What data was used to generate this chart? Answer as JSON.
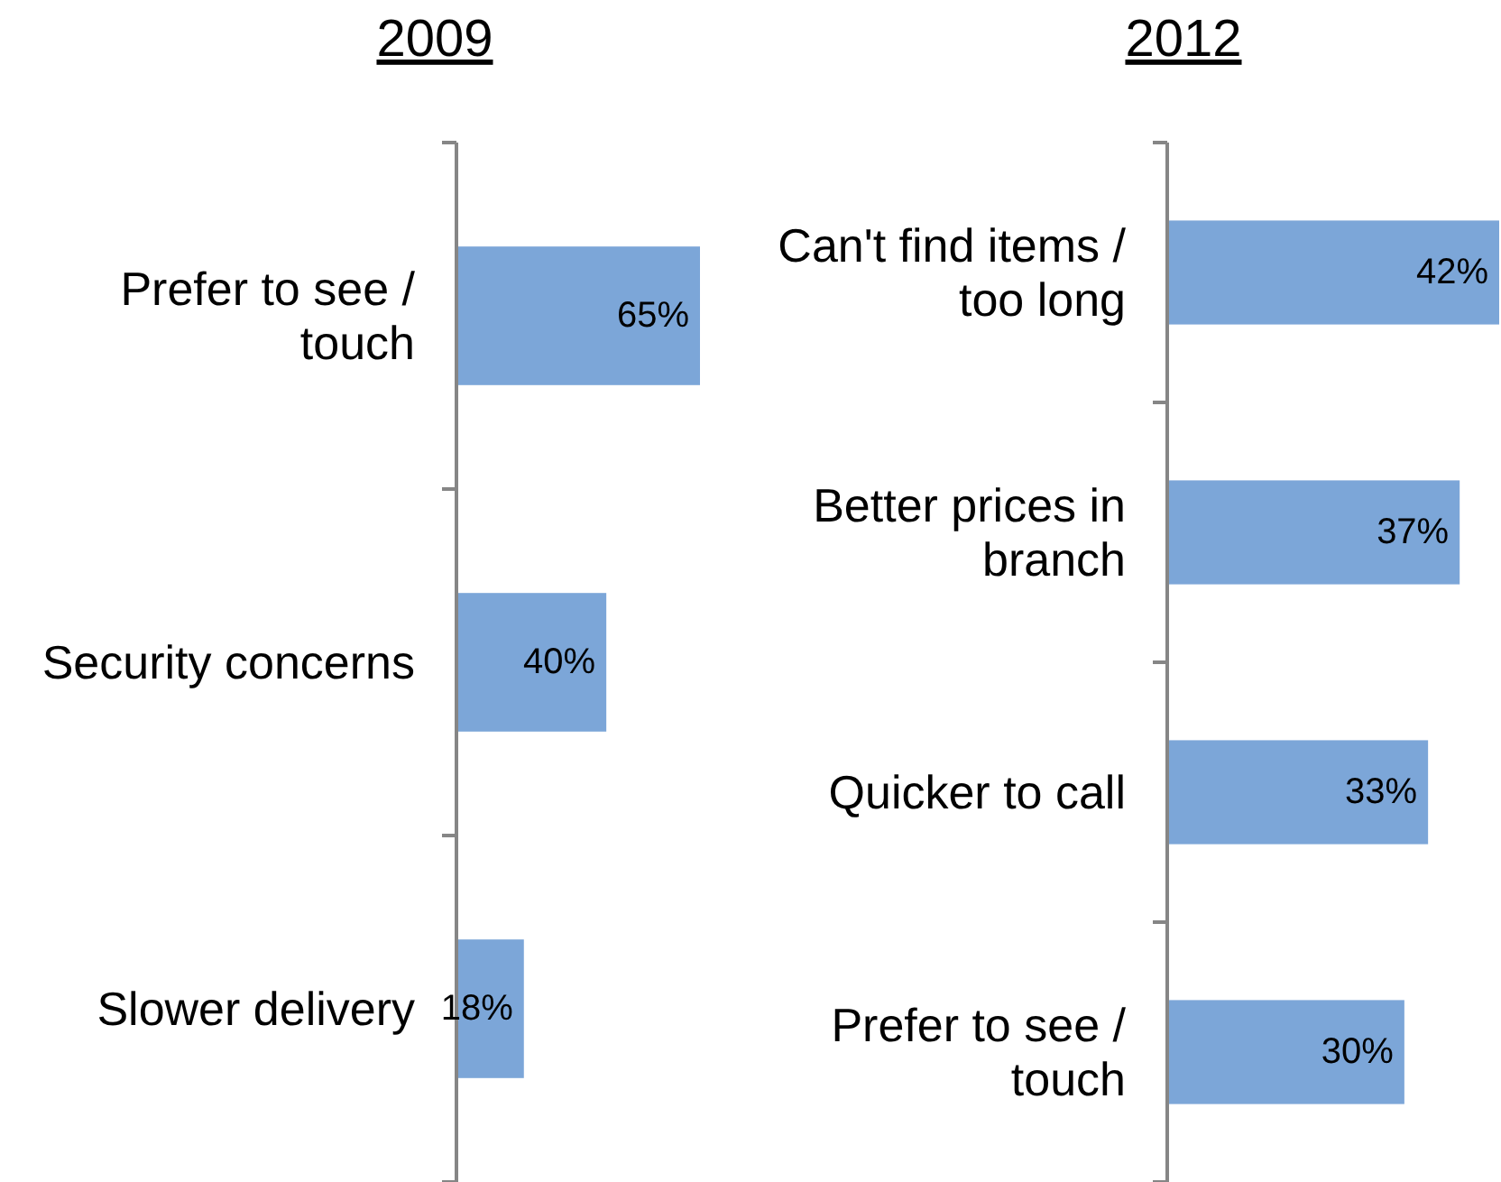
{
  "chart_data": [
    {
      "type": "bar",
      "orientation": "horizontal",
      "title": "2009",
      "categories": [
        "Prefer to see / touch",
        "Security concerns",
        "Slower delivery"
      ],
      "values": [
        65,
        40,
        18
      ],
      "value_labels": [
        "65%",
        "40%",
        "18%"
      ],
      "color": "#7ca6d8"
    },
    {
      "type": "bar",
      "orientation": "horizontal",
      "title": "2012",
      "categories": [
        "Can't find items / too long",
        "Better prices in branch",
        "Quicker to call",
        "Prefer to see / touch"
      ],
      "values": [
        42,
        37,
        33,
        30
      ],
      "value_labels": [
        "42%",
        "37%",
        "33%",
        "30%"
      ],
      "color": "#7ca6d8"
    }
  ]
}
